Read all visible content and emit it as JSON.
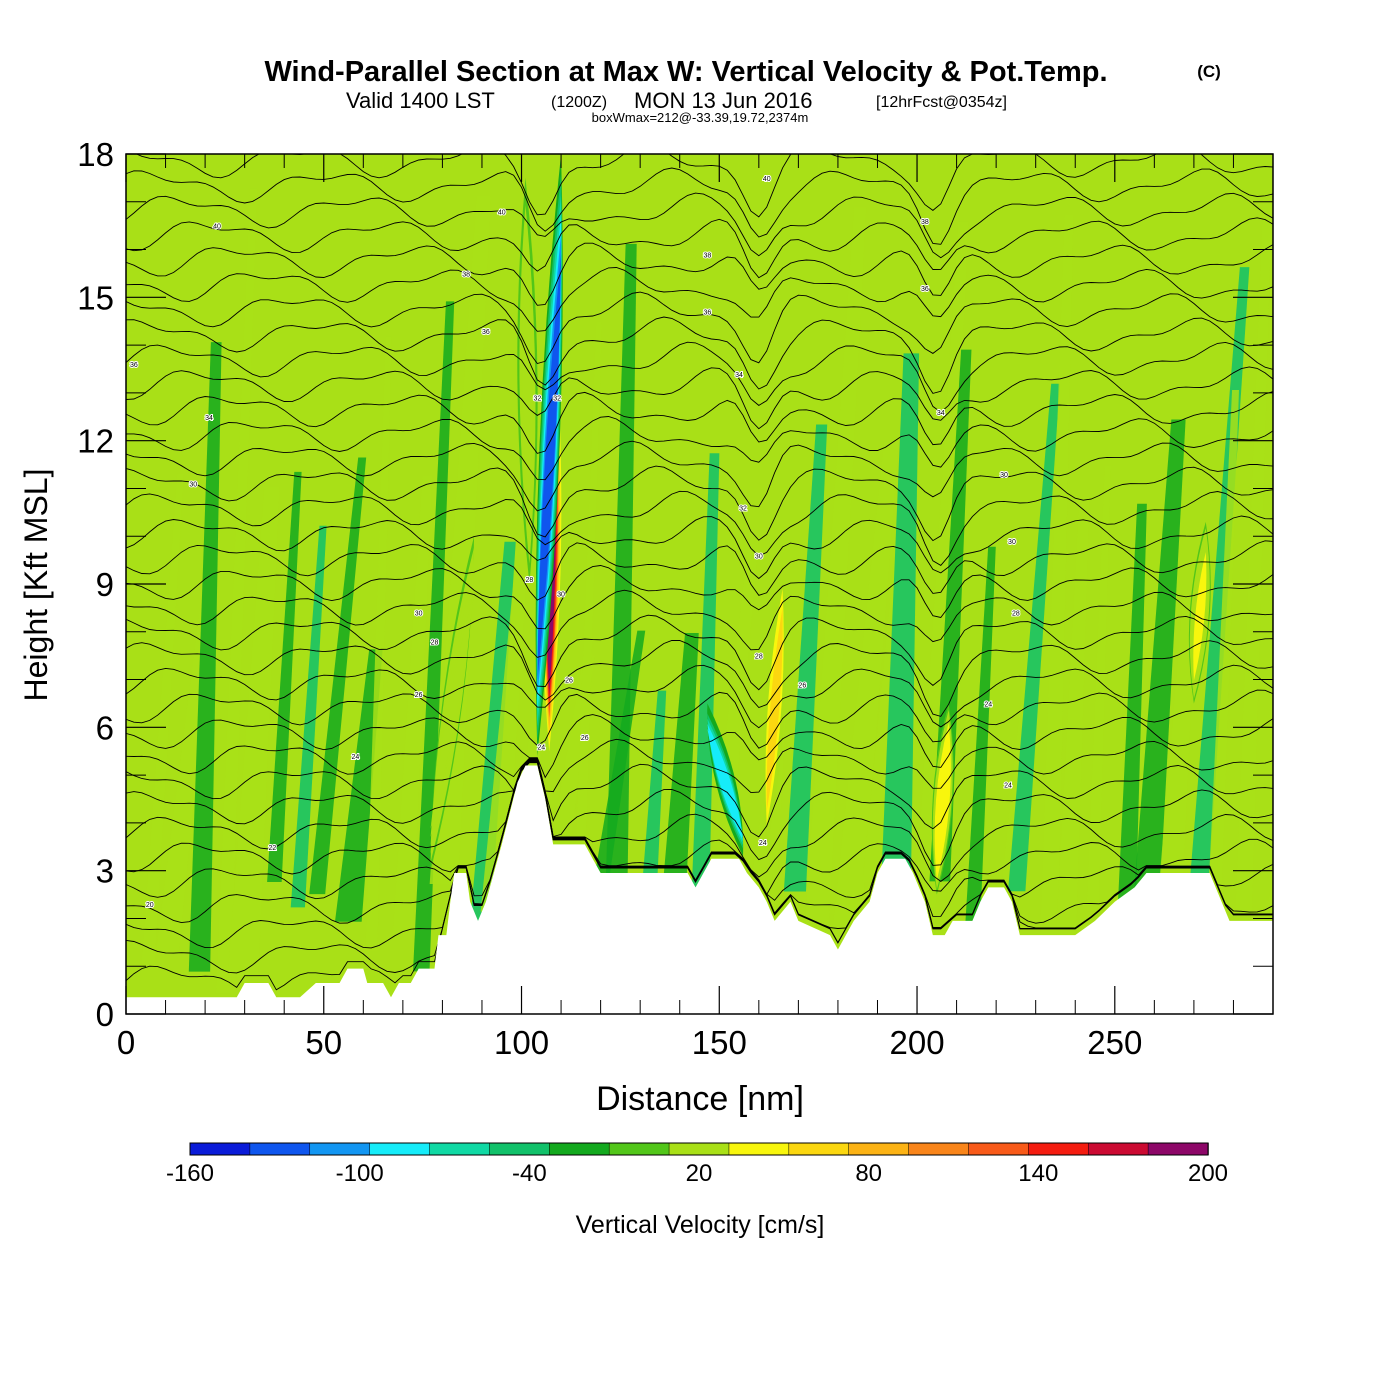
{
  "chart_data": {
    "type": "heatmap",
    "title": "Wind-Parallel Section at Max W: Vertical Velocity & Pot.Temp.",
    "title_mark": "(C)",
    "subtitle_main": "Valid 1400 LST",
    "subtitle_utc": "(1200Z)",
    "subtitle_date": "MON 13 Jun 2016",
    "subtitle_fcst": "[12hrFcst@0354z]",
    "box_info": "boxWmax=212@-33.39,19.72,2374m",
    "xlabel": "Distance [nm]",
    "ylabel": "Height [Kft MSL]",
    "xlim": [
      0,
      290
    ],
    "ylim": [
      0,
      18
    ],
    "x_ticks": [
      0,
      50,
      100,
      150,
      200,
      250
    ],
    "y_ticks": [
      0,
      3,
      6,
      9,
      12,
      15,
      18
    ],
    "colorbar": {
      "label": "Vertical Velocity [cm/s]",
      "range": [
        -160,
        200
      ],
      "labels": [
        -160,
        -100,
        -40,
        20,
        80,
        140,
        200
      ],
      "colors": [
        "#0a1bd8",
        "#0f56ee",
        "#1296f2",
        "#16ecf9",
        "#10d9a4",
        "#11c16a",
        "#13a91e",
        "#52c619",
        "#a9e017",
        "#f8f60d",
        "#fbd710",
        "#fcb315",
        "#f9851a",
        "#f85a19",
        "#f41c10",
        "#cb0a32",
        "#8d0768"
      ]
    },
    "terrain_kft": [
      [
        0,
        0.35
      ],
      [
        28,
        0.35
      ],
      [
        30,
        0.65
      ],
      [
        36,
        0.65
      ],
      [
        38,
        0.35
      ],
      [
        44,
        0.35
      ],
      [
        48,
        0.65
      ],
      [
        54,
        0.65
      ],
      [
        56,
        0.95
      ],
      [
        60,
        0.95
      ],
      [
        61,
        0.65
      ],
      [
        65,
        0.65
      ],
      [
        67,
        0.35
      ],
      [
        69,
        0.65
      ],
      [
        72,
        0.65
      ],
      [
        74,
        0.95
      ],
      [
        78,
        0.95
      ],
      [
        79,
        1.65
      ],
      [
        81,
        1.65
      ],
      [
        82,
        2.35
      ],
      [
        83,
        2.95
      ],
      [
        86,
        2.95
      ],
      [
        87,
        2.35
      ],
      [
        89,
        1.95
      ],
      [
        91,
        2.35
      ],
      [
        93,
        2.95
      ],
      [
        95,
        3.55
      ],
      [
        97,
        4.2
      ],
      [
        99,
        4.85
      ],
      [
        101,
        5.2
      ],
      [
        104,
        5.2
      ],
      [
        106,
        4.5
      ],
      [
        108,
        3.55
      ],
      [
        116,
        3.55
      ],
      [
        118,
        3.25
      ],
      [
        120,
        2.95
      ],
      [
        142,
        2.95
      ],
      [
        144,
        2.65
      ],
      [
        146,
        2.95
      ],
      [
        148,
        3.25
      ],
      [
        155,
        3.25
      ],
      [
        157,
        2.95
      ],
      [
        160,
        2.65
      ],
      [
        162,
        2.35
      ],
      [
        164,
        1.95
      ],
      [
        168,
        2.35
      ],
      [
        170,
        1.95
      ],
      [
        178,
        1.65
      ],
      [
        180,
        1.35
      ],
      [
        182,
        1.65
      ],
      [
        184,
        1.95
      ],
      [
        188,
        2.35
      ],
      [
        190,
        2.95
      ],
      [
        192,
        3.25
      ],
      [
        197,
        3.25
      ],
      [
        199,
        2.95
      ],
      [
        202,
        2.35
      ],
      [
        204,
        1.65
      ],
      [
        207,
        1.65
      ],
      [
        209,
        1.95
      ],
      [
        214,
        1.95
      ],
      [
        216,
        2.35
      ],
      [
        218,
        2.65
      ],
      [
        222,
        2.65
      ],
      [
        224,
        2.35
      ],
      [
        226,
        1.65
      ],
      [
        240,
        1.65
      ],
      [
        245,
        1.95
      ],
      [
        250,
        2.35
      ],
      [
        255,
        2.65
      ],
      [
        258,
        2.95
      ],
      [
        274,
        2.95
      ],
      [
        277,
        2.35
      ],
      [
        279,
        1.95
      ],
      [
        290,
        1.95
      ]
    ],
    "updraft_cores": [
      {
        "x_base": 107,
        "x_top": 108,
        "z_base": 5.5,
        "z_top": 14.8,
        "w_max": 212
      },
      {
        "x_base": 162,
        "x_top": 166,
        "z_base": 3.5,
        "z_top": 9.5,
        "w_max": 70
      },
      {
        "x_base": 205,
        "x_top": 208,
        "z_base": 2.5,
        "z_top": 6.5,
        "w_max": 60
      },
      {
        "x_base": 270,
        "x_top": 273,
        "z_base": 6.5,
        "z_top": 10.3,
        "w_max": 40
      },
      {
        "x_base": 77,
        "x_top": 88,
        "z_base": 3.0,
        "z_top": 10.0,
        "w_max": 35
      },
      {
        "x_base": 102,
        "x_top": 101,
        "z_base": 9.0,
        "z_top": 17.5,
        "w_max": 30
      }
    ],
    "downdraft_cores": [
      {
        "x_base": 104,
        "x_top": 110,
        "z_base": 5.4,
        "z_top": 18,
        "w_min": -155
      },
      {
        "x_base": 156,
        "x_top": 147,
        "z_base": 3.3,
        "z_top": 6.5,
        "w_min": -110
      }
    ],
    "theta_contour_labels": [
      {
        "x": 23,
        "z": 16.5,
        "label": "40"
      },
      {
        "x": 95,
        "z": 16.8,
        "label": "40"
      },
      {
        "x": 162,
        "z": 17.5,
        "label": "40"
      },
      {
        "x": 86,
        "z": 15.5,
        "label": "38"
      },
      {
        "x": 147,
        "z": 15.9,
        "label": "38"
      },
      {
        "x": 202,
        "z": 16.6,
        "label": "38"
      },
      {
        "x": 91,
        "z": 14.3,
        "label": "36"
      },
      {
        "x": 147,
        "z": 14.7,
        "label": "36"
      },
      {
        "x": 202,
        "z": 15.2,
        "label": "36"
      },
      {
        "x": 2,
        "z": 13.6,
        "label": "36"
      },
      {
        "x": 21,
        "z": 12.5,
        "label": "34"
      },
      {
        "x": 155,
        "z": 13.4,
        "label": "34"
      },
      {
        "x": 206,
        "z": 12.6,
        "label": "34"
      },
      {
        "x": 104,
        "z": 12.9,
        "label": "32"
      },
      {
        "x": 109,
        "z": 12.9,
        "label": "32"
      },
      {
        "x": 17,
        "z": 11.1,
        "label": "30"
      },
      {
        "x": 156,
        "z": 10.6,
        "label": "32"
      },
      {
        "x": 222,
        "z": 11.3,
        "label": "30"
      },
      {
        "x": 160,
        "z": 9.6,
        "label": "30"
      },
      {
        "x": 224,
        "z": 9.9,
        "label": "30"
      },
      {
        "x": 102,
        "z": 9.1,
        "label": "28"
      },
      {
        "x": 110,
        "z": 8.8,
        "label": "30"
      },
      {
        "x": 74,
        "z": 8.4,
        "label": "30"
      },
      {
        "x": 78,
        "z": 7.8,
        "label": "28"
      },
      {
        "x": 225,
        "z": 8.4,
        "label": "28"
      },
      {
        "x": 160,
        "z": 7.5,
        "label": "28"
      },
      {
        "x": 112,
        "z": 7.0,
        "label": "26"
      },
      {
        "x": 171,
        "z": 6.9,
        "label": "26"
      },
      {
        "x": 74,
        "z": 6.7,
        "label": "26"
      },
      {
        "x": 218,
        "z": 6.5,
        "label": "24"
      },
      {
        "x": 105,
        "z": 5.6,
        "label": "24"
      },
      {
        "x": 116,
        "z": 5.8,
        "label": "26"
      },
      {
        "x": 58,
        "z": 5.4,
        "label": "24"
      },
      {
        "x": 223,
        "z": 4.8,
        "label": "24"
      },
      {
        "x": 161,
        "z": 3.6,
        "label": "24"
      },
      {
        "x": 37,
        "z": 3.5,
        "label": "22"
      },
      {
        "x": 6,
        "z": 2.3,
        "label": "20"
      }
    ]
  }
}
